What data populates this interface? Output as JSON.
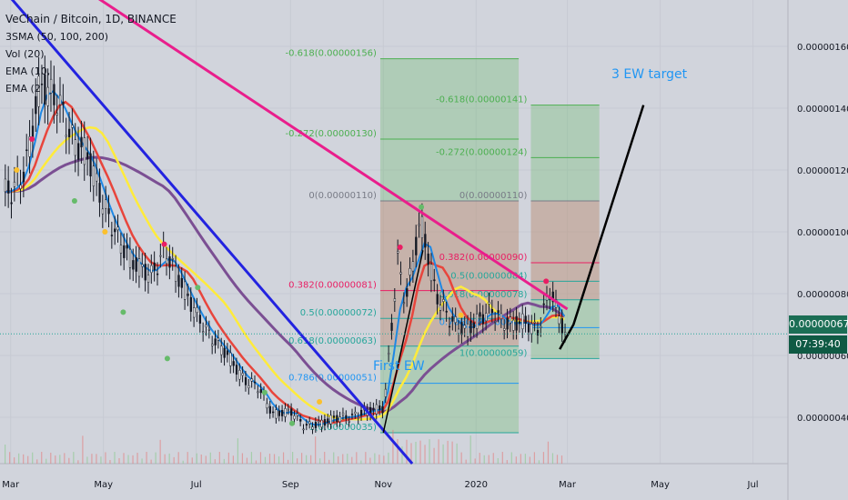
{
  "legend": {
    "title": "VeChain / Bitcoin, 1D, BINANCE",
    "line2": "3SMA (50, 100, 200)",
    "line3": "Vol (20)",
    "line4": "EMA (10, ",
    "line5": "EMA (2"
  },
  "annotations": {
    "target_label": "3 EW target",
    "first_label": "First EW"
  },
  "price_badge": {
    "price": "0.00000067",
    "timer": "07:39:40"
  },
  "colors": {
    "background": "#d1d4dc",
    "grid": "#c7cad3",
    "candle": "#131722",
    "sma_purple": "#7b4f93",
    "ema_red": "#e8453c",
    "ema_blue": "#1e88e5",
    "yellow": "#ffeb3b",
    "trend_blue": "#2323e0",
    "trend_magenta": "#e91e8c",
    "target_black": "#000000",
    "fib_green": "#66bb6a",
    "fib_brown": "#b78a6d",
    "badge_green": "#1b6e55",
    "badge_dark": "#0f5a44"
  },
  "chart_data": {
    "type": "candlestick",
    "x_axis_ticks": [
      "Mar",
      "May",
      "Jul",
      "Sep",
      "Nov",
      "2020",
      "Mar",
      "May",
      "Jul"
    ],
    "y_axis_ticks": [
      "0.00000040",
      "0.00000060",
      "0.00000080",
      "0.00000100",
      "0.00000120",
      "0.00000140",
      "0.00000160"
    ],
    "ylim": [
      2.5e-07,
      1.75e-06
    ],
    "last_price": 6.7e-07,
    "price_path": [
      [
        "2019-03-01",
        1.13e-06
      ],
      [
        "2019-03-10",
        1.2e-06
      ],
      [
        "2019-03-20",
        1.48e-06
      ],
      [
        "2019-04-01",
        1.42e-06
      ],
      [
        "2019-04-10",
        1.3e-06
      ],
      [
        "2019-04-20",
        1.25e-06
      ],
      [
        "2019-05-01",
        1.08e-06
      ],
      [
        "2019-05-10",
        9.8e-07
      ],
      [
        "2019-05-20",
        9e-07
      ],
      [
        "2019-06-01",
        8.6e-07
      ],
      [
        "2019-06-10",
        9.4e-07
      ],
      [
        "2019-06-20",
        8.4e-07
      ],
      [
        "2019-07-01",
        7.3e-07
      ],
      [
        "2019-07-10",
        6.6e-07
      ],
      [
        "2019-07-20",
        6.1e-07
      ],
      [
        "2019-08-01",
        5.2e-07
      ],
      [
        "2019-08-10",
        5e-07
      ],
      [
        "2019-08-20",
        4.1e-07
      ],
      [
        "2019-09-01",
        4.2e-07
      ],
      [
        "2019-09-10",
        3.7e-07
      ],
      [
        "2019-09-20",
        3.8e-07
      ],
      [
        "2019-10-01",
        4e-07
      ],
      [
        "2019-10-10",
        4e-07
      ],
      [
        "2019-10-20",
        4.2e-07
      ],
      [
        "2019-11-01",
        4.3e-07
      ],
      [
        "2019-11-10",
        9.1e-07
      ],
      [
        "2019-11-15",
        7.7e-07
      ],
      [
        "2019-11-25",
        1.04e-06
      ],
      [
        "2019-12-05",
        8e-07
      ],
      [
        "2019-12-15",
        7.1e-07
      ],
      [
        "2019-12-25",
        6.8e-07
      ],
      [
        "2020-01-10",
        7.5e-07
      ],
      [
        "2020-01-20",
        7e-07
      ],
      [
        "2020-02-01",
        7.1e-07
      ],
      [
        "2020-02-10",
        6.8e-07
      ],
      [
        "2020-02-18",
        8.1e-07
      ],
      [
        "2020-02-28",
        6.7e-07
      ]
    ],
    "fib_left": [
      {
        "label": "-0.618(0.00000156)",
        "value": 1.56e-06
      },
      {
        "label": "-0.272(0.00000130)",
        "value": 1.3e-06
      },
      {
        "label": "0(0.00000110)",
        "value": 1.1e-06
      },
      {
        "label": "0.382(0.00000081)",
        "value": 8.1e-07
      },
      {
        "label": "0.5(0.00000072)",
        "value": 7.2e-07
      },
      {
        "label": "0.618(0.00000063)",
        "value": 6.3e-07
      },
      {
        "label": "0.786(0.00000051)",
        "value": 5.1e-07
      },
      {
        "label": "1(0.00000035)",
        "value": 3.5e-07
      }
    ],
    "fib_right": [
      {
        "label": "-0.618(0.00000141)",
        "value": 1.41e-06
      },
      {
        "label": "-0.272(0.00000124)",
        "value": 1.24e-06
      },
      {
        "label": "0(0.00000110)",
        "value": 1.1e-06
      },
      {
        "label": "0.382(0.00000090)",
        "value": 9e-07
      },
      {
        "label": "0.5(0.00000084)",
        "value": 8.4e-07
      },
      {
        "label": "0.618(0.00000078)",
        "value": 7.8e-07
      },
      {
        "label": "0.786(0.00000069)",
        "value": 6.9e-07
      },
      {
        "label": "1(0.00000059)",
        "value": 5.9e-07
      }
    ],
    "trend_blue": [
      [
        "2019-02-25",
        1.78e-06
      ],
      [
        "2019-11-20",
        2.5e-07
      ]
    ],
    "trend_magenta": [
      [
        "2019-04-20",
        1.78e-06
      ],
      [
        "2020-03-01",
        7.5e-07
      ]
    ],
    "target_path": [
      [
        "2020-02-25",
        6.2e-07
      ],
      [
        "2020-03-05",
        7e-07
      ],
      [
        "2020-04-20",
        1.41e-06
      ]
    ]
  }
}
